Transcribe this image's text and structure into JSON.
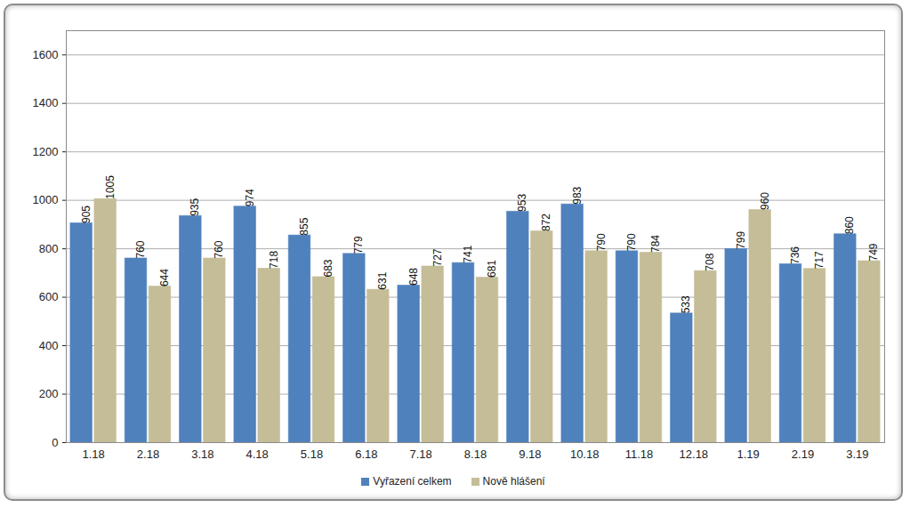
{
  "chart_data": {
    "type": "bar",
    "categories": [
      "1.18",
      "2.18",
      "3.18",
      "4.18",
      "5.18",
      "6.18",
      "7.18",
      "8.18",
      "9.18",
      "10.18",
      "11.18",
      "12.18",
      "1.19",
      "2.19",
      "3.19"
    ],
    "series": [
      {
        "name": "Vyřazení celkem",
        "color": "#4f81bd",
        "values": [
          905,
          760,
          935,
          974,
          855,
          779,
          648,
          741,
          953,
          983,
          790,
          533,
          799,
          736,
          860
        ]
      },
      {
        "name": "Nově hlášení",
        "color": "#c4bd97",
        "values": [
          1005,
          644,
          760,
          718,
          683,
          631,
          727,
          681,
          872,
          790,
          784,
          708,
          960,
          717,
          749
        ]
      }
    ],
    "ylim": [
      0,
      1700
    ],
    "yticks": [
      0,
      200,
      400,
      600,
      800,
      1000,
      1200,
      1400,
      1600
    ],
    "grid": true,
    "data_labels": true,
    "legend": "bottom"
  }
}
